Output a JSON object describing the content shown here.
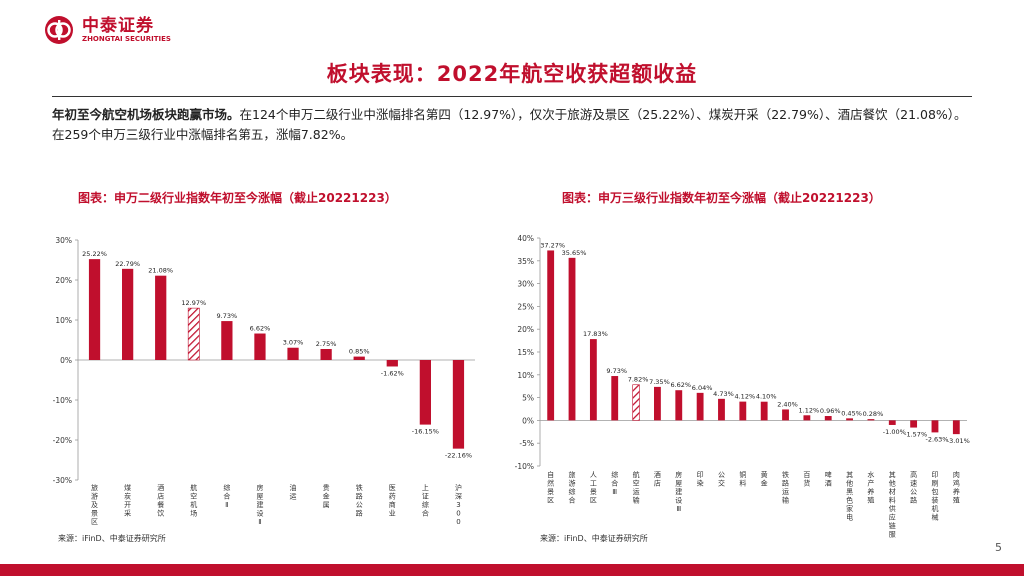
{
  "brand": {
    "name_cn": "中泰证券",
    "name_en": "ZHONGTAI SECURITIES",
    "color": "#c00f2d"
  },
  "page": {
    "title": "板块表现：2022年航空收获超额收益",
    "intro_bold": "年初至今航空机场板块跑赢市场。",
    "intro_rest": "在124个申万二级行业中涨幅排名第四（12.97%），仅次于旅游及景区（25.22%）、煤炭开采（22.79%）、酒店餐饮（21.08%）。在259个申万三级行业中涨幅排名第五，涨幅7.82%。",
    "page_number": "5"
  },
  "chart_data": [
    {
      "type": "bar",
      "title": "图表：申万二级行业指数年初至今涨幅（截止20221223）",
      "source": "来源：iFinD、中泰证券研究所",
      "categories": [
        "旅游及景区",
        "煤炭开采",
        "酒店餐饮",
        "航空机场",
        "综合Ⅱ",
        "房屋建设Ⅱ",
        "油运",
        "贵金属",
        "铁路公路",
        "医药商业",
        "上证综合",
        "沪深300"
      ],
      "values": [
        25.22,
        22.79,
        21.08,
        12.97,
        9.73,
        6.62,
        3.07,
        2.75,
        0.85,
        -1.62,
        -16.15,
        -22.16
      ],
      "labels": [
        "25.22%",
        "22.79%",
        "21.08%",
        "12.97%",
        "9.73%",
        "6.62%",
        "3.07%",
        "2.75%",
        "0.85%",
        "-1.62%",
        "-16.15%",
        "-22.16%"
      ],
      "highlight_index": 3,
      "yticks": [
        "30%",
        "20%",
        "10%",
        "0%",
        "-10%",
        "-20%",
        "-30%"
      ],
      "ylim": [
        -30,
        30
      ],
      "bar_color": "#c00f2d"
    },
    {
      "type": "bar",
      "title": "图表：申万三级行业指数年初至今涨幅（截止20221223）",
      "source": "来源：iFinD、中泰证券研究所",
      "categories": [
        "自然景区",
        "旅游综合",
        "人工景区",
        "综合Ⅲ",
        "航空运输",
        "酒店",
        "房屋建设Ⅲ",
        "印染",
        "公交",
        "铜料",
        "黄金",
        "铁路运输",
        "百货",
        "啤酒",
        "其他黑色家电",
        "水产养殖",
        "其他材料供应链服务",
        "高速公路",
        "印刷包装机械",
        "肉鸡养殖"
      ],
      "values": [
        37.27,
        35.65,
        17.83,
        9.73,
        7.82,
        7.35,
        6.62,
        6.04,
        4.73,
        4.12,
        4.1,
        2.4,
        1.12,
        0.96,
        0.45,
        0.28,
        -1.0,
        -1.57,
        -2.63,
        -3.01
      ],
      "labels": [
        "37.27%",
        "35.65%",
        "17.83%",
        "9.73%",
        "7.82%",
        "7.35%",
        "6.62%",
        "6.04%",
        "4.73%",
        "4.12%",
        "4.10%",
        "2.40%",
        "1.12%",
        "0.96%",
        "0.45%",
        "0.28%",
        "-1.00%",
        "-1.57%",
        "-2.63%",
        "-3.01%"
      ],
      "highlight_index": 4,
      "yticks": [
        "40%",
        "35%",
        "30%",
        "25%",
        "20%",
        "15%",
        "10%",
        "5%",
        "0%",
        "-5%",
        "-10%"
      ],
      "ylim": [
        -10,
        40
      ],
      "bar_color": "#c00f2d"
    }
  ]
}
